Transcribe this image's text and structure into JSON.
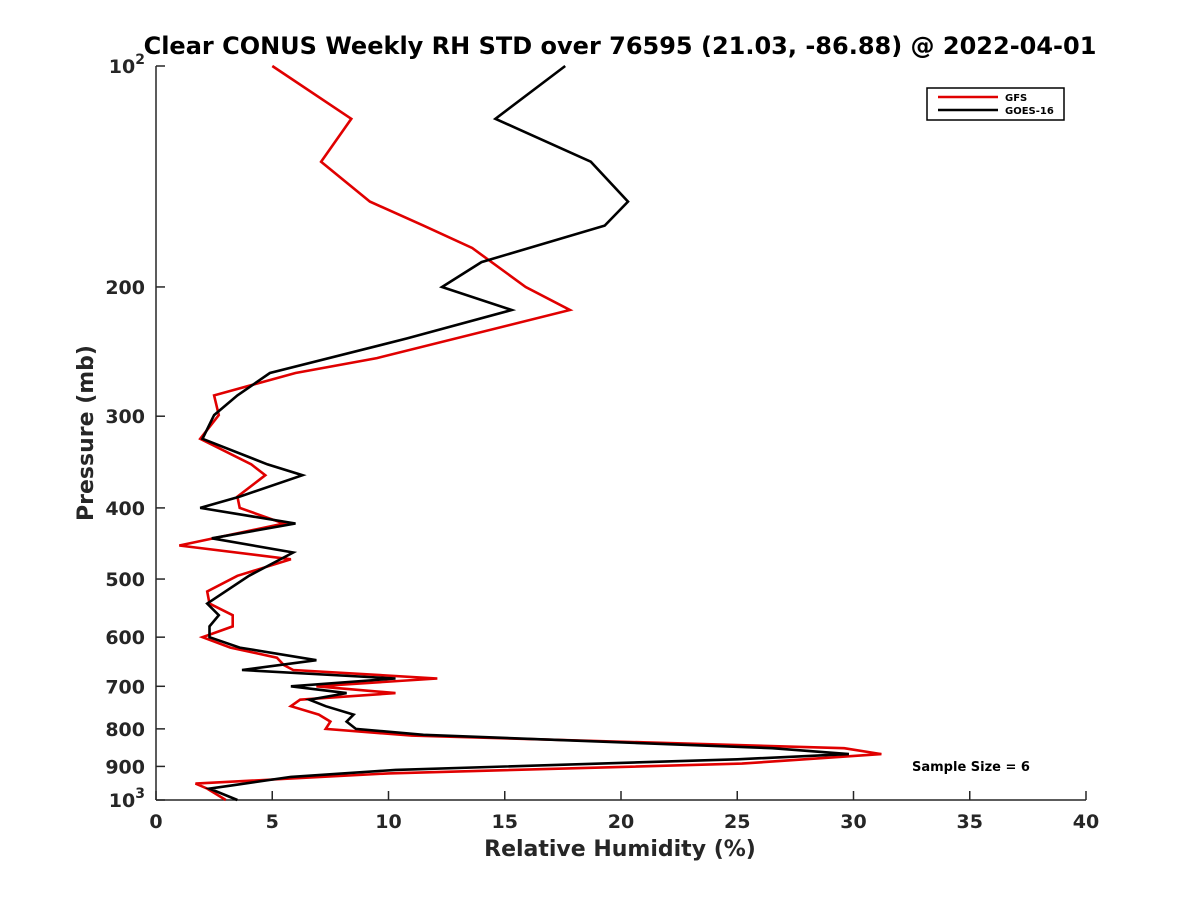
{
  "chart_data": {
    "type": "line",
    "title": "Clear CONUS Weekly RH STD over 76595 (21.03, -86.88) @ 2022-04-01",
    "xlabel": "Relative Humidity (%)",
    "ylabel": "Pressure (mb)",
    "xlim": [
      0,
      40
    ],
    "ylim": [
      100,
      1000
    ],
    "yscale": "log",
    "y_reversed": true,
    "xticks": [
      0,
      5,
      10,
      15,
      20,
      25,
      30,
      35,
      40
    ],
    "yticks": [
      {
        "value": 100,
        "base": "10",
        "exp": "2"
      },
      {
        "value": 200,
        "label": "200"
      },
      {
        "value": 300,
        "label": "300"
      },
      {
        "value": 400,
        "label": "400"
      },
      {
        "value": 500,
        "label": "500"
      },
      {
        "value": 600,
        "label": "600"
      },
      {
        "value": 700,
        "label": "700"
      },
      {
        "value": 800,
        "label": "800"
      },
      {
        "value": 900,
        "label": "900"
      },
      {
        "value": 1000,
        "base": "10",
        "exp": "3"
      }
    ],
    "grid": false,
    "legend_position": "top-right",
    "annotation": "Sample Size = 6",
    "series": [
      {
        "name": "GFS",
        "color": "#e00000",
        "points": [
          [
            5.0,
            100
          ],
          [
            8.4,
            118
          ],
          [
            7.1,
            135
          ],
          [
            9.2,
            153
          ],
          [
            11.5,
            165
          ],
          [
            13.6,
            177
          ],
          [
            15.9,
            200
          ],
          [
            17.8,
            215
          ],
          [
            9.5,
            250
          ],
          [
            6.0,
            262
          ],
          [
            2.5,
            281
          ],
          [
            2.7,
            299
          ],
          [
            1.9,
            322
          ],
          [
            4.1,
            349
          ],
          [
            4.7,
            361
          ],
          [
            3.5,
            386
          ],
          [
            3.6,
            400
          ],
          [
            5.5,
            420
          ],
          [
            1.0,
            450
          ],
          [
            5.8,
            470
          ],
          [
            3.5,
            495
          ],
          [
            2.2,
            520
          ],
          [
            2.3,
            540
          ],
          [
            3.3,
            560
          ],
          [
            3.3,
            580
          ],
          [
            2.0,
            600
          ],
          [
            3.2,
            620
          ],
          [
            5.2,
            640
          ],
          [
            5.5,
            655
          ],
          [
            5.9,
            665
          ],
          [
            12.1,
            683
          ],
          [
            6.9,
            700
          ],
          [
            10.3,
            715
          ],
          [
            6.2,
            730
          ],
          [
            5.8,
            745
          ],
          [
            7.0,
            765
          ],
          [
            7.5,
            782
          ],
          [
            7.3,
            800
          ],
          [
            11.0,
            817
          ],
          [
            29.6,
            850
          ],
          [
            31.2,
            866
          ],
          [
            25.2,
            892
          ],
          [
            10.0,
            920
          ],
          [
            1.7,
            950
          ],
          [
            2.2,
            965
          ],
          [
            3.0,
            1000
          ]
        ]
      },
      {
        "name": "GOES-16",
        "color": "#000000",
        "points": [
          [
            17.6,
            100
          ],
          [
            14.6,
            118
          ],
          [
            18.7,
            135
          ],
          [
            20.3,
            153
          ],
          [
            19.3,
            165
          ],
          [
            14.0,
            185
          ],
          [
            12.3,
            200
          ],
          [
            15.3,
            215
          ],
          [
            10.8,
            235
          ],
          [
            4.9,
            262
          ],
          [
            3.5,
            281
          ],
          [
            2.5,
            299
          ],
          [
            2.0,
            322
          ],
          [
            4.8,
            349
          ],
          [
            6.3,
            361
          ],
          [
            3.6,
            386
          ],
          [
            1.9,
            400
          ],
          [
            6.0,
            420
          ],
          [
            2.4,
            440
          ],
          [
            5.9,
            460
          ],
          [
            4.0,
            495
          ],
          [
            2.2,
            540
          ],
          [
            2.7,
            560
          ],
          [
            2.3,
            580
          ],
          [
            2.3,
            600
          ],
          [
            3.6,
            620
          ],
          [
            6.9,
            645
          ],
          [
            3.7,
            665
          ],
          [
            10.3,
            683
          ],
          [
            5.8,
            700
          ],
          [
            8.2,
            715
          ],
          [
            6.6,
            730
          ],
          [
            7.3,
            745
          ],
          [
            8.5,
            765
          ],
          [
            8.2,
            782
          ],
          [
            8.6,
            800
          ],
          [
            11.5,
            815
          ],
          [
            26.5,
            850
          ],
          [
            29.8,
            866
          ],
          [
            25.0,
            880
          ],
          [
            10.3,
            910
          ],
          [
            5.8,
            930
          ],
          [
            3.3,
            955
          ],
          [
            2.3,
            965
          ],
          [
            3.5,
            1000
          ]
        ]
      }
    ]
  }
}
